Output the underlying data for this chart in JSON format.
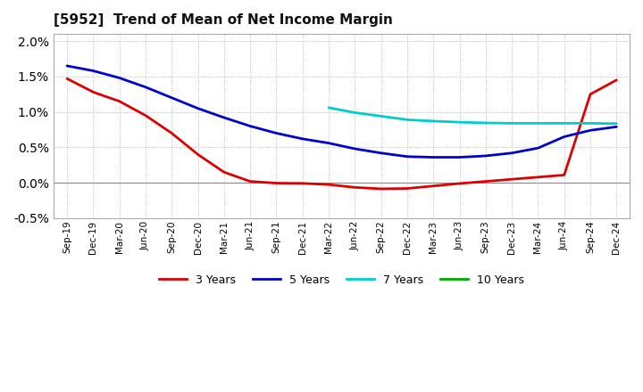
{
  "title": "[5952]  Trend of Mean of Net Income Margin",
  "background_color": "#ffffff",
  "plot_bg_color": "#ffffff",
  "grid_color": "#aaaaaa",
  "ylim": [
    -0.005,
    0.021
  ],
  "yticks": [
    -0.005,
    0.0,
    0.005,
    0.01,
    0.015,
    0.02
  ],
  "x_labels": [
    "Sep-19",
    "Dec-19",
    "Mar-20",
    "Jun-20",
    "Sep-20",
    "Dec-20",
    "Mar-21",
    "Jun-21",
    "Sep-21",
    "Dec-21",
    "Mar-22",
    "Jun-22",
    "Sep-22",
    "Dec-22",
    "Mar-23",
    "Jun-23",
    "Sep-23",
    "Dec-23",
    "Mar-24",
    "Jun-24",
    "Sep-24",
    "Dec-24"
  ],
  "series": {
    "3 Years": {
      "color": "#dd0000",
      "linewidth": 2.0,
      "data_x": [
        0,
        1,
        2,
        3,
        4,
        5,
        6,
        7,
        8,
        9,
        10,
        11,
        12,
        13,
        14,
        15,
        16,
        17,
        18,
        19,
        20,
        21
      ],
      "data_y": [
        0.0147,
        0.0128,
        0.0115,
        0.0095,
        0.007,
        0.004,
        0.0015,
        0.0002,
        -5e-05,
        -8e-05,
        -0.00025,
        -0.00065,
        -0.00085,
        -0.0008,
        -0.00045,
        -0.0001,
        0.0002,
        0.0005,
        0.0008,
        0.0011,
        0.0125,
        0.0145
      ]
    },
    "5 Years": {
      "color": "#0000cc",
      "linewidth": 2.0,
      "data_x": [
        0,
        1,
        2,
        3,
        4,
        5,
        6,
        7,
        8,
        9,
        10,
        11,
        12,
        13,
        14,
        15,
        16,
        17,
        18,
        19,
        20,
        21
      ],
      "data_y": [
        0.0165,
        0.0158,
        0.0148,
        0.0135,
        0.012,
        0.0105,
        0.0092,
        0.008,
        0.007,
        0.0062,
        0.0056,
        0.0048,
        0.0042,
        0.0037,
        0.0036,
        0.0036,
        0.0038,
        0.0042,
        0.0049,
        0.0065,
        0.0074,
        0.0079
      ]
    },
    "7 Years": {
      "color": "#00cccc",
      "linewidth": 2.0,
      "data_x": [
        10,
        11,
        12,
        13,
        14,
        15,
        16,
        17,
        18,
        19,
        20,
        21
      ],
      "data_y": [
        0.0106,
        0.0099,
        0.0094,
        0.0089,
        0.0087,
        0.00855,
        0.00845,
        0.0084,
        0.0084,
        0.0084,
        0.0084,
        0.00835
      ]
    },
    "10 Years": {
      "color": "#00aa00",
      "linewidth": 2.0,
      "data_x": [],
      "data_y": []
    }
  },
  "legend": {
    "3 Years": "#dd0000",
    "5 Years": "#0000cc",
    "7 Years": "#00cccc",
    "10 Years": "#00aa00"
  }
}
